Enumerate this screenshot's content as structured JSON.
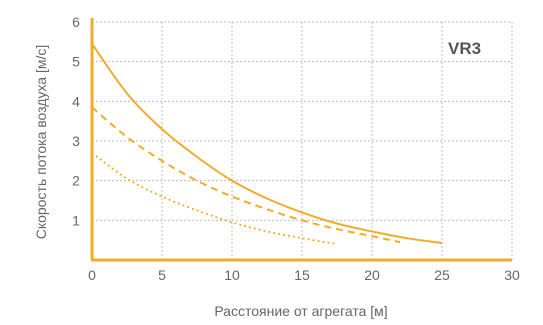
{
  "chart_data": {
    "type": "line",
    "title": "",
    "annotation": "VR3",
    "xlabel": "Расстояние от агрегата [м]",
    "ylabel": "Скорость потока воздуха [м/с]",
    "xlim": [
      0,
      30
    ],
    "ylim": [
      0,
      6
    ],
    "x_ticks": [
      "0",
      "5",
      "10",
      "15",
      "20",
      "25",
      "30"
    ],
    "y_ticks": [
      "1",
      "2",
      "3",
      "4",
      "5",
      "6"
    ],
    "grid": true,
    "grid_style": "dotted",
    "color": "#f2ac2a",
    "axis_color": "#f2ac2a",
    "series": [
      {
        "style": "solid",
        "points": [
          [
            0,
            5.45
          ],
          [
            2.5,
            4.2
          ],
          [
            5,
            3.3
          ],
          [
            7.5,
            2.6
          ],
          [
            10,
            2.0
          ],
          [
            12.5,
            1.55
          ],
          [
            15,
            1.2
          ],
          [
            17.5,
            0.92
          ],
          [
            20,
            0.72
          ],
          [
            22.5,
            0.55
          ],
          [
            25,
            0.43
          ]
        ]
      },
      {
        "style": "dashed",
        "points": [
          [
            0,
            3.85
          ],
          [
            2.5,
            3.1
          ],
          [
            5,
            2.5
          ],
          [
            7.5,
            2.0
          ],
          [
            10,
            1.6
          ],
          [
            12.5,
            1.28
          ],
          [
            15,
            1.0
          ],
          [
            17.5,
            0.78
          ],
          [
            20,
            0.6
          ],
          [
            22,
            0.45
          ]
        ]
      },
      {
        "style": "dotted",
        "points": [
          [
            0,
            2.7
          ],
          [
            2.5,
            2.05
          ],
          [
            5,
            1.6
          ],
          [
            7.5,
            1.25
          ],
          [
            10,
            0.95
          ],
          [
            12.5,
            0.72
          ],
          [
            15,
            0.55
          ],
          [
            17.5,
            0.4
          ]
        ]
      }
    ]
  }
}
